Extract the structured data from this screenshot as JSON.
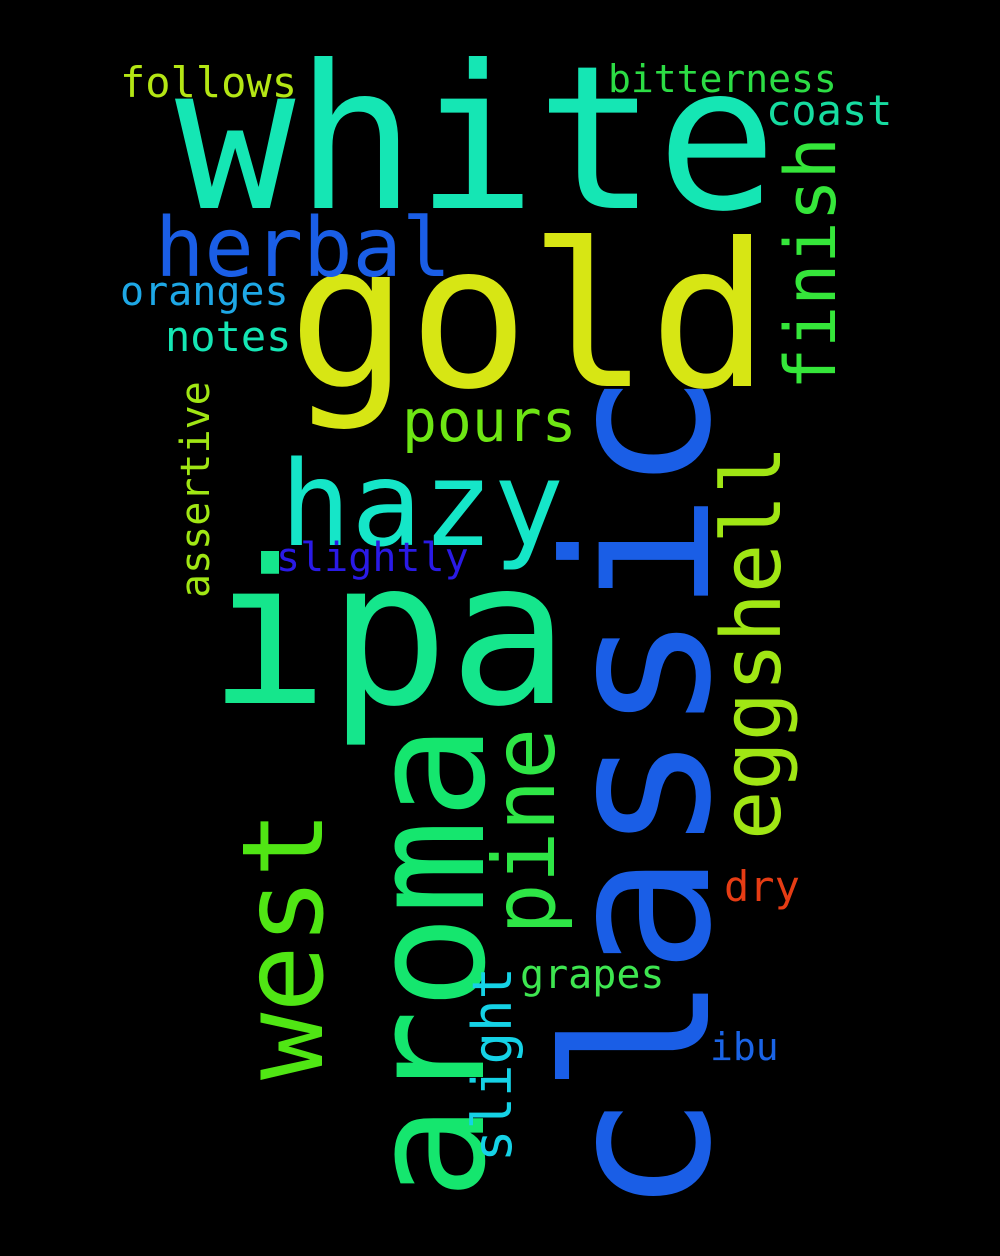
{
  "words": {
    "white": {
      "text": "white",
      "color": "#15e6b4"
    },
    "gold": {
      "text": "gold",
      "color": "#d7e614"
    },
    "herbal": {
      "text": "herbal",
      "color": "#1a5ee6"
    },
    "follows": {
      "text": "follows",
      "color": "#b4e614"
    },
    "bitterness": {
      "text": "bitterness",
      "color": "#2cdc44"
    },
    "coast": {
      "text": "coast",
      "color": "#16dca0"
    },
    "finish": {
      "text": "finish",
      "color": "#35e63a"
    },
    "oranges": {
      "text": "oranges",
      "color": "#1ea8e6"
    },
    "notes": {
      "text": "notes",
      "color": "#15e6b4"
    },
    "pours": {
      "text": "pours",
      "color": "#6ee614"
    },
    "hazy": {
      "text": "hazy",
      "color": "#15e6c8"
    },
    "classic": {
      "text": "classic",
      "color": "#1a5ee6"
    },
    "eggshell": {
      "text": "eggshell",
      "color": "#a0e614"
    },
    "assertive": {
      "text": "assertive",
      "color": "#a0e614"
    },
    "slightly": {
      "text": "slightly",
      "color": "#2a1ae6"
    },
    "ipa": {
      "text": "ipa",
      "color": "#15e68c"
    },
    "west": {
      "text": "west",
      "color": "#50e614"
    },
    "aroma": {
      "text": "aroma",
      "color": "#15e66e"
    },
    "pine": {
      "text": "pine",
      "color": "#2ee646"
    },
    "dry": {
      "text": "dry",
      "color": "#e63c14"
    },
    "grapes": {
      "text": "grapes",
      "color": "#3ee650"
    },
    "slight": {
      "text": "slight",
      "color": "#15d2e6"
    },
    "ibu": {
      "text": "ibu",
      "color": "#1a64e6"
    }
  }
}
